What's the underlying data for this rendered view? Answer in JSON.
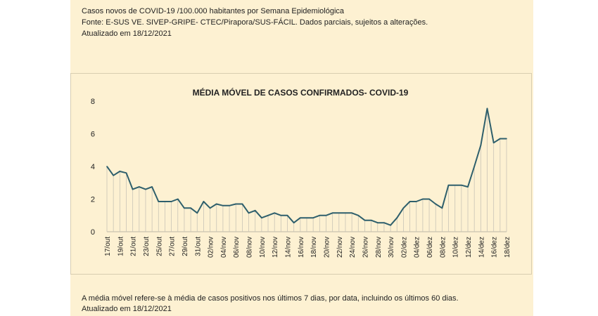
{
  "header": {
    "line1": "Casos novos de COVID-19 /100.000 habitantes por Semana Epidemiológica",
    "line2": "Fonte: E-SUS VE. SIVEP-GRIPE- CTEC/Pirapora/SUS-FÁCIL. Dados parciais, sujeitos a alterações.",
    "line3": "Atualizado em  18/12/2021"
  },
  "footer": {
    "line1": "A média móvel refere-se à média de casos positivos nos últimos 7 dias, por data, incluindo os últimos 60 dias.",
    "line2": "Atualizado em 18/12/2021"
  },
  "chart_data": {
    "type": "line",
    "title": "MÉDIA MÓVEL DE CASOS CONFIRMADOS-  COVID-19",
    "xlabel": "",
    "ylabel": "",
    "ylim": [
      0,
      8
    ],
    "yticks": [
      0,
      2,
      4,
      6,
      8
    ],
    "grid": "vertical drop lines",
    "line_color": "#2e5f6c",
    "x": [
      "17/out",
      "18/out",
      "19/out",
      "20/out",
      "21/out",
      "22/out",
      "23/out",
      "24/out",
      "25/out",
      "26/out",
      "27/out",
      "28/out",
      "29/out",
      "30/out",
      "31/out",
      "01/nov",
      "02/nov",
      "03/nov",
      "04/nov",
      "05/nov",
      "06/nov",
      "07/nov",
      "08/nov",
      "09/nov",
      "10/nov",
      "11/nov",
      "12/nov",
      "13/nov",
      "14/nov",
      "15/nov",
      "16/nov",
      "17/nov",
      "18/nov",
      "19/nov",
      "20/nov",
      "21/nov",
      "22/nov",
      "23/nov",
      "24/nov",
      "25/nov",
      "26/nov",
      "27/nov",
      "28/nov",
      "29/nov",
      "30/nov",
      "01/dez",
      "02/dez",
      "03/dez",
      "04/dez",
      "05/dez",
      "06/dez",
      "07/dez",
      "08/dez",
      "09/dez",
      "10/dez",
      "11/dez",
      "12/dez",
      "13/dez",
      "14/dez",
      "15/dez",
      "16/dez",
      "17/dez",
      "18/dez"
    ],
    "tick_labels": [
      "17/out",
      "19/out",
      "21/out",
      "23/out",
      "25/out",
      "27/out",
      "29/out",
      "31/out",
      "02/nov",
      "04/nov",
      "06/nov",
      "08/nov",
      "10/nov",
      "12/nov",
      "14/nov",
      "16/nov",
      "18/nov",
      "20/nov",
      "22/nov",
      "24/nov",
      "26/nov",
      "28/nov",
      "30/nov",
      "02/dez",
      "04/dez",
      "06/dez",
      "08/dez",
      "10/dez",
      "12/dez",
      "14/dez",
      "16/dez",
      "18/dez"
    ],
    "values": [
      4.0,
      3.45,
      3.7,
      3.6,
      2.6,
      2.75,
      2.6,
      2.75,
      1.85,
      1.85,
      1.85,
      2.0,
      1.45,
      1.45,
      1.15,
      1.85,
      1.45,
      1.7,
      1.6,
      1.6,
      1.7,
      1.7,
      1.15,
      1.3,
      0.85,
      1.0,
      1.15,
      1.0,
      1.0,
      0.55,
      0.85,
      0.85,
      0.85,
      1.0,
      1.0,
      1.15,
      1.15,
      1.15,
      1.15,
      1.0,
      0.7,
      0.7,
      0.55,
      0.55,
      0.4,
      0.85,
      1.45,
      1.85,
      1.85,
      2.0,
      2.0,
      1.7,
      1.45,
      2.85,
      2.85,
      2.85,
      2.75,
      4.0,
      5.3,
      7.55,
      5.45,
      5.7,
      5.7
    ]
  }
}
